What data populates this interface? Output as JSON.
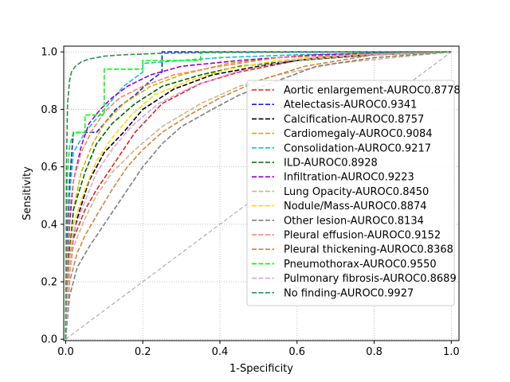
{
  "chart_data": {
    "type": "line",
    "title": "",
    "xlabel": "1-Specificity",
    "ylabel": "Sensitivity",
    "xlim": [
      -0.005,
      1.02
    ],
    "ylim": [
      -0.005,
      1.02
    ],
    "xticks": [
      "0.0",
      "0.2",
      "0.4",
      "0.6",
      "0.8",
      "1.0"
    ],
    "yticks": [
      "0.0",
      "0.2",
      "0.4",
      "0.6",
      "0.8",
      "1.0"
    ],
    "grid": true,
    "legend_position": "right",
    "reference_line": {
      "x": [
        0,
        1
      ],
      "y": [
        0,
        1
      ],
      "color": "#a0a0a0",
      "style": "dashed"
    },
    "series": [
      {
        "name": "Aortic enlargement-AUROC0.8778",
        "color": "#d62728",
        "x": [
          0,
          0.01,
          0.02,
          0.05,
          0.08,
          0.12,
          0.18,
          0.25,
          0.35,
          0.45,
          0.6,
          0.8,
          1.0
        ],
        "y": [
          0,
          0.25,
          0.35,
          0.45,
          0.52,
          0.6,
          0.72,
          0.82,
          0.89,
          0.93,
          0.97,
          0.99,
          1.0
        ]
      },
      {
        "name": "Atelectasis-AUROC0.9341",
        "color": "#1f1fd0",
        "x": [
          0,
          0.005,
          0.01,
          0.02,
          0.03,
          0.05,
          0.08,
          0.1,
          0.13,
          0.18,
          0.22,
          0.25,
          0.25,
          1.0
        ],
        "y": [
          0,
          0.38,
          0.55,
          0.72,
          0.72,
          0.72,
          0.72,
          0.75,
          0.8,
          0.85,
          0.9,
          0.93,
          1.0,
          1.0
        ]
      },
      {
        "name": "Calcification-AUROC0.8757",
        "color": "#000000",
        "x": [
          0,
          0.01,
          0.03,
          0.06,
          0.1,
          0.15,
          0.2,
          0.28,
          0.38,
          0.5,
          0.65,
          0.8,
          1.0
        ],
        "y": [
          0,
          0.3,
          0.42,
          0.55,
          0.65,
          0.72,
          0.8,
          0.87,
          0.92,
          0.95,
          0.98,
          0.99,
          1.0
        ]
      },
      {
        "name": "Cardiomegaly-AUROC0.9084",
        "color": "#c8b400",
        "x": [
          0,
          0.01,
          0.02,
          0.04,
          0.07,
          0.1,
          0.15,
          0.22,
          0.3,
          0.42,
          0.55,
          0.75,
          1.0
        ],
        "y": [
          0,
          0.3,
          0.45,
          0.58,
          0.68,
          0.75,
          0.82,
          0.88,
          0.92,
          0.96,
          0.98,
          0.995,
          1.0
        ]
      },
      {
        "name": "Consolidation-AUROC0.9217",
        "color": "#17becf",
        "x": [
          0,
          0.005,
          0.01,
          0.02,
          0.05,
          0.1,
          0.15,
          0.2,
          0.2,
          0.3,
          0.4,
          0.6,
          1.0
        ],
        "y": [
          0,
          0.3,
          0.5,
          0.65,
          0.72,
          0.8,
          0.88,
          0.93,
          0.96,
          0.97,
          0.98,
          0.99,
          1.0
        ]
      },
      {
        "name": "ILD-AUROC0.8928",
        "color": "#006400",
        "x": [
          0,
          0.01,
          0.02,
          0.05,
          0.08,
          0.12,
          0.18,
          0.25,
          0.35,
          0.45,
          0.6,
          0.8,
          1.0
        ],
        "y": [
          0,
          0.3,
          0.45,
          0.58,
          0.68,
          0.75,
          0.82,
          0.88,
          0.92,
          0.95,
          0.97,
          0.99,
          1.0
        ]
      },
      {
        "name": "Infiltration-AUROC0.9223",
        "color": "#9400d3",
        "x": [
          0,
          0.005,
          0.01,
          0.02,
          0.04,
          0.06,
          0.09,
          0.12,
          0.16,
          0.22,
          0.3,
          0.45,
          0.65,
          1.0
        ],
        "y": [
          0,
          0.25,
          0.4,
          0.55,
          0.67,
          0.75,
          0.8,
          0.84,
          0.88,
          0.92,
          0.95,
          0.97,
          0.99,
          1.0
        ]
      },
      {
        "name": "Lung Opacity-AUROC0.8450",
        "color": "#d2b48c",
        "x": [
          0,
          0.01,
          0.02,
          0.05,
          0.08,
          0.12,
          0.18,
          0.25,
          0.35,
          0.45,
          0.55,
          0.7,
          0.85,
          1.0
        ],
        "y": [
          0,
          0.22,
          0.32,
          0.42,
          0.5,
          0.58,
          0.66,
          0.74,
          0.82,
          0.88,
          0.92,
          0.96,
          0.98,
          1.0
        ]
      },
      {
        "name": "Nodule/Mass-AUROC0.8874",
        "color": "#ffd700",
        "x": [
          0,
          0.01,
          0.02,
          0.05,
          0.08,
          0.12,
          0.17,
          0.23,
          0.32,
          0.42,
          0.55,
          0.75,
          1.0
        ],
        "y": [
          0,
          0.28,
          0.4,
          0.52,
          0.62,
          0.7,
          0.78,
          0.85,
          0.9,
          0.94,
          0.97,
          0.99,
          1.0
        ]
      },
      {
        "name": "Other lesion-AUROC0.8134",
        "color": "#808080",
        "x": [
          0,
          0.01,
          0.03,
          0.06,
          0.1,
          0.15,
          0.2,
          0.25,
          0.3,
          0.38,
          0.45,
          0.55,
          0.65,
          0.8,
          1.0
        ],
        "y": [
          0,
          0.15,
          0.25,
          0.32,
          0.4,
          0.5,
          0.6,
          0.68,
          0.74,
          0.8,
          0.85,
          0.9,
          0.95,
          0.98,
          1.0
        ]
      },
      {
        "name": "Pleural effusion-AUROC0.9152",
        "color": "#fa8060",
        "x": [
          0,
          0.005,
          0.01,
          0.02,
          0.04,
          0.07,
          0.1,
          0.14,
          0.2,
          0.28,
          0.4,
          0.55,
          0.75,
          1.0
        ],
        "y": [
          0,
          0.3,
          0.45,
          0.55,
          0.65,
          0.73,
          0.79,
          0.84,
          0.88,
          0.92,
          0.95,
          0.98,
          0.99,
          1.0
        ]
      },
      {
        "name": "Pleural thickening-AUROC0.8368",
        "color": "#cd853f",
        "x": [
          0,
          0.01,
          0.03,
          0.05,
          0.08,
          0.12,
          0.16,
          0.2,
          0.25,
          0.32,
          0.4,
          0.5,
          0.62,
          0.8,
          1.0
        ],
        "y": [
          0,
          0.2,
          0.3,
          0.36,
          0.43,
          0.52,
          0.6,
          0.66,
          0.72,
          0.78,
          0.84,
          0.9,
          0.95,
          0.99,
          1.0
        ]
      },
      {
        "name": "Pneumothorax-AUROC0.9550",
        "color": "#00ff00",
        "x": [
          0,
          0.002,
          0.004,
          0.006,
          0.01,
          0.02,
          0.05,
          0.05,
          0.1,
          0.1,
          0.2,
          0.2,
          0.35,
          0.35,
          1.0
        ],
        "y": [
          0,
          0.4,
          0.55,
          0.6,
          0.67,
          0.72,
          0.72,
          0.78,
          0.78,
          0.94,
          0.94,
          0.97,
          0.97,
          1.0,
          1.0
        ]
      },
      {
        "name": "Pulmonary fibrosis-AUROC0.8689",
        "color": "#dda0dd",
        "x": [
          0,
          0.01,
          0.02,
          0.05,
          0.08,
          0.12,
          0.17,
          0.24,
          0.33,
          0.44,
          0.58,
          0.78,
          1.0
        ],
        "y": [
          0,
          0.25,
          0.37,
          0.48,
          0.58,
          0.66,
          0.74,
          0.82,
          0.88,
          0.93,
          0.97,
          0.99,
          1.0
        ]
      },
      {
        "name": "No finding-AUROC0.9927",
        "color": "#2e8b57",
        "x": [
          0,
          0.002,
          0.005,
          0.01,
          0.015,
          0.025,
          0.04,
          0.06,
          0.1,
          0.15,
          0.25,
          0.4,
          0.6,
          1.0
        ],
        "y": [
          0,
          0.6,
          0.82,
          0.9,
          0.93,
          0.95,
          0.965,
          0.975,
          0.985,
          0.99,
          0.995,
          0.998,
          0.999,
          1.0
        ]
      }
    ]
  }
}
